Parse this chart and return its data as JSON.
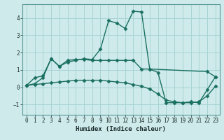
{
  "xlabel": "Humidex (Indice chaleur)",
  "background_color": "#ceeaea",
  "grid_color": "#a8d4d4",
  "line_color": "#1a7060",
  "xlim": [
    -0.5,
    23.5
  ],
  "ylim": [
    -1.6,
    4.8
  ],
  "yticks": [
    -1,
    0,
    1,
    2,
    3,
    4
  ],
  "xticks": [
    0,
    1,
    2,
    3,
    4,
    5,
    6,
    7,
    8,
    9,
    10,
    11,
    12,
    13,
    14,
    15,
    16,
    17,
    18,
    19,
    20,
    21,
    22,
    23
  ],
  "line1_x": [
    0,
    1,
    2,
    3,
    4,
    5,
    6,
    7,
    8,
    9,
    10,
    11,
    12,
    13,
    14,
    15,
    22,
    23
  ],
  "line1_y": [
    0.1,
    0.55,
    0.65,
    1.65,
    1.2,
    1.55,
    1.6,
    1.6,
    1.55,
    1.55,
    1.55,
    1.55,
    1.55,
    1.55,
    1.05,
    1.05,
    0.9,
    0.6
  ],
  "line2_x": [
    0,
    1,
    2,
    3,
    4,
    5,
    6,
    7,
    8,
    9,
    10,
    11,
    12,
    13,
    14,
    15,
    16,
    17,
    18,
    19,
    20,
    21,
    22,
    23
  ],
  "line2_y": [
    0.1,
    0.15,
    0.2,
    0.25,
    0.3,
    0.35,
    0.4,
    0.4,
    0.4,
    0.4,
    0.35,
    0.3,
    0.25,
    0.15,
    0.05,
    -0.1,
    -0.4,
    -0.75,
    -0.85,
    -0.9,
    -0.9,
    -0.85,
    -0.5,
    0.05
  ],
  "line3_x": [
    0,
    1,
    2,
    3,
    4,
    5,
    6,
    7,
    8,
    9,
    10,
    11,
    12,
    13,
    14,
    15,
    16,
    17,
    18,
    19,
    20,
    21,
    22,
    23
  ],
  "line3_y": [
    0.1,
    0.2,
    0.55,
    1.65,
    1.2,
    1.45,
    1.55,
    1.65,
    1.6,
    2.2,
    3.85,
    3.7,
    3.4,
    4.4,
    4.35,
    1.05,
    0.85,
    -0.9,
    -0.9,
    -0.9,
    -0.85,
    -0.9,
    -0.15,
    0.6
  ],
  "marker": "D",
  "markersize": 2.5,
  "linewidth": 1.0
}
